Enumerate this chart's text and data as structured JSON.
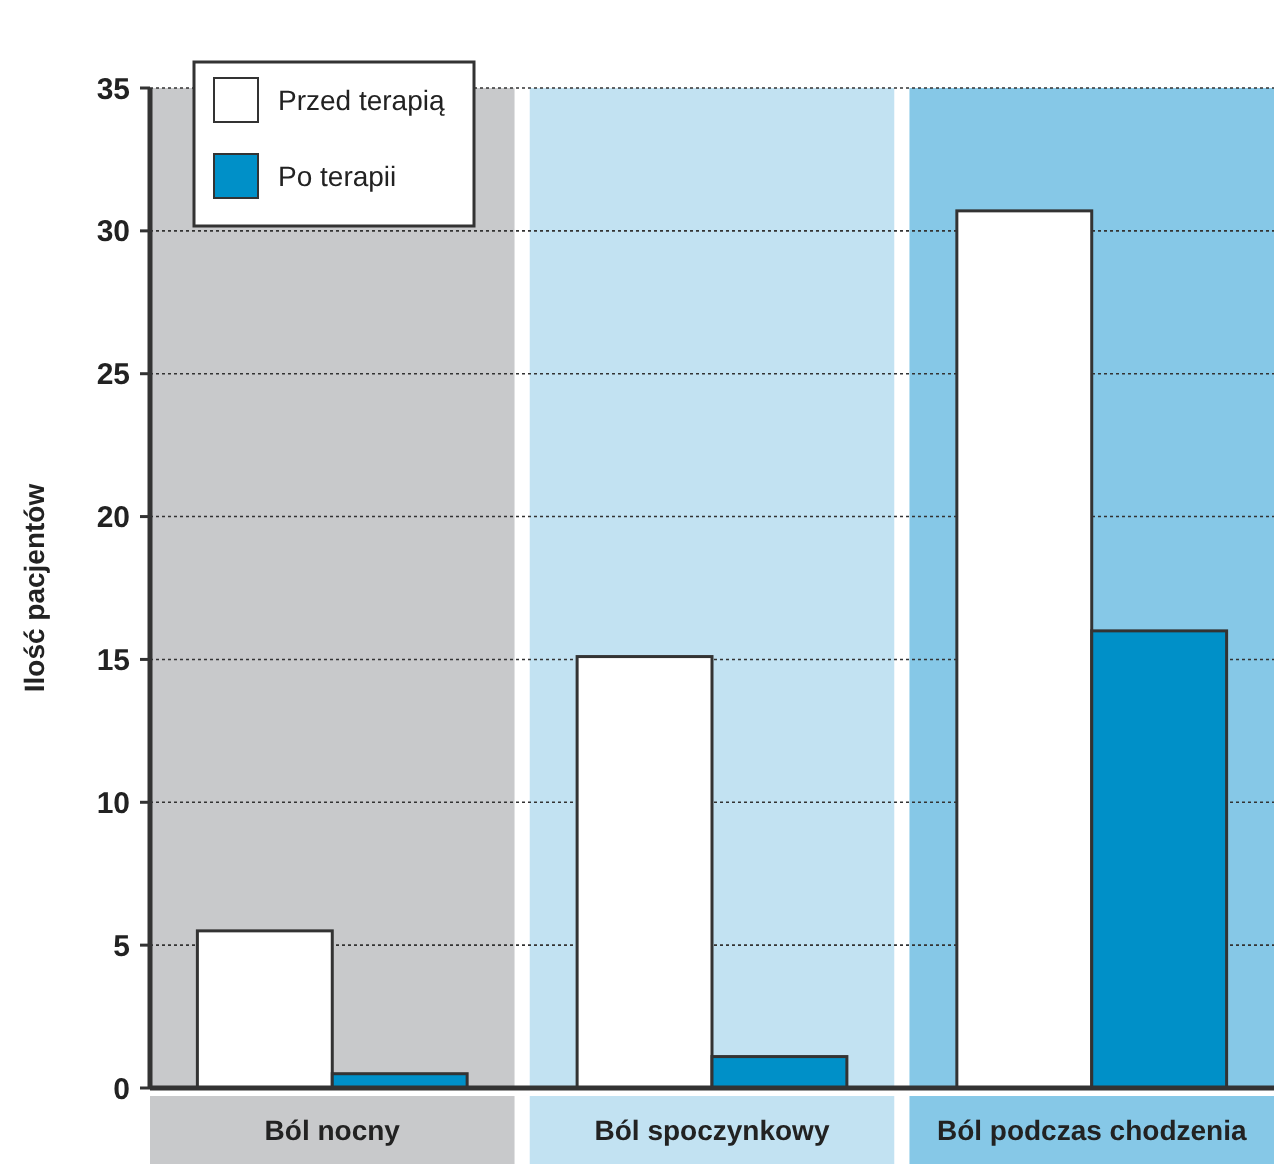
{
  "chart_data": {
    "type": "bar",
    "ylabel": "Ilość pacjentów",
    "categories": [
      "Ból nocny",
      "Ból spoczynkowy",
      "Ból podczas chodzenia"
    ],
    "series": [
      {
        "name": "Przed terapią",
        "color": "#ffffff",
        "values": [
          5.5,
          15.1,
          30.7
        ]
      },
      {
        "name": "Po terapii",
        "color": "#0090c8",
        "values": [
          0.5,
          1.1,
          16.0
        ]
      }
    ],
    "bands": [
      {
        "axis": "x",
        "from": "Ból nocny",
        "to": "Ból nocny",
        "color": "#c8c9cb"
      },
      {
        "axis": "x",
        "from": "Ból spoczynkowy",
        "to": "Ból spoczynkowy",
        "color": "#c2e2f2"
      },
      {
        "axis": "x",
        "from": "Ból podczas chodzenia",
        "to": "Ból podczas chodzenia",
        "color": "#86c8e7"
      }
    ],
    "ylim": [
      0,
      35
    ],
    "yticks": [
      0,
      5,
      10,
      15,
      20,
      25,
      30,
      35
    ],
    "grid": "y",
    "legend": "top left"
  }
}
